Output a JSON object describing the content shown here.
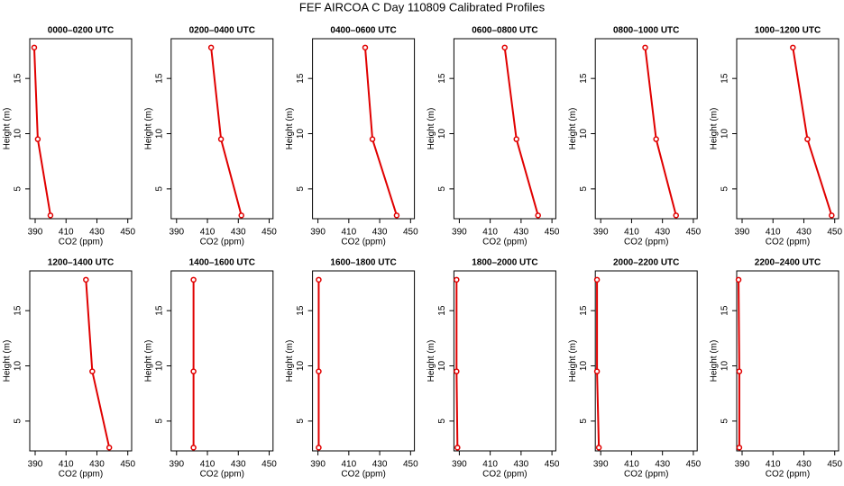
{
  "title": "FEF AIRCOA C  Day 110809  Calibrated Profiles",
  "chart_data": [
    {
      "type": "line",
      "title": "0000–0200 UTC",
      "xlabel": "CO2 (ppm)",
      "ylabel": "Height (m)",
      "color": "#e00000",
      "x": [
        389.4,
        391.7,
        399.9
      ],
      "y": [
        17.8,
        9.5,
        2.6
      ],
      "xlim": [
        386.5,
        452.5
      ],
      "xticks": [
        390,
        410,
        430,
        450
      ],
      "ylim": [
        2.3,
        18.6
      ],
      "yticks": [
        5,
        10,
        15
      ]
    },
    {
      "type": "line",
      "title": "0200–0400 UTC",
      "xlabel": "CO2 (ppm)",
      "ylabel": "Height (m)",
      "color": "#e00000",
      "x": [
        412.4,
        418.8,
        432
      ],
      "y": [
        17.8,
        9.5,
        2.6
      ],
      "xlim": [
        386.5,
        452.5
      ],
      "xticks": [
        390,
        410,
        430,
        450
      ],
      "ylim": [
        2.3,
        18.6
      ],
      "yticks": [
        5,
        10,
        15
      ]
    },
    {
      "type": "line",
      "title": "0400–0600 UTC",
      "xlabel": "CO2 (ppm)",
      "ylabel": "Height (m)",
      "color": "#e00000",
      "x": [
        420.6,
        425.3,
        441
      ],
      "y": [
        17.8,
        9.5,
        2.6
      ],
      "xlim": [
        386.5,
        452.5
      ],
      "xticks": [
        390,
        410,
        430,
        450
      ],
      "ylim": [
        2.3,
        18.6
      ],
      "yticks": [
        5,
        10,
        15
      ]
    },
    {
      "type": "line",
      "title": "0600–0800 UTC",
      "xlabel": "CO2 (ppm)",
      "ylabel": "Height (m)",
      "color": "#e00000",
      "x": [
        419.4,
        427,
        441
      ],
      "y": [
        17.8,
        9.5,
        2.6
      ],
      "xlim": [
        386.5,
        452.5
      ],
      "xticks": [
        390,
        410,
        430,
        450
      ],
      "ylim": [
        2.3,
        18.6
      ],
      "yticks": [
        5,
        10,
        15
      ]
    },
    {
      "type": "line",
      "title": "0800–1000 UTC",
      "xlabel": "CO2 (ppm)",
      "ylabel": "Height (m)",
      "color": "#e00000",
      "x": [
        418.8,
        425.9,
        438.8
      ],
      "y": [
        17.8,
        9.5,
        2.6
      ],
      "xlim": [
        386.5,
        452.5
      ],
      "xticks": [
        390,
        410,
        430,
        450
      ],
      "ylim": [
        2.3,
        18.6
      ],
      "yticks": [
        5,
        10,
        15
      ]
    },
    {
      "type": "line",
      "title": "1000–1200 UTC",
      "xlabel": "CO2 (ppm)",
      "ylabel": "Height (m)",
      "color": "#e00000",
      "x": [
        422.9,
        432.3,
        448
      ],
      "y": [
        17.8,
        9.5,
        2.6
      ],
      "xlim": [
        386.5,
        452.5
      ],
      "xticks": [
        390,
        410,
        430,
        450
      ],
      "ylim": [
        2.3,
        18.6
      ],
      "yticks": [
        5,
        10,
        15
      ]
    },
    {
      "type": "line",
      "title": "1200–1400 UTC",
      "xlabel": "CO2 (ppm)",
      "ylabel": "Height (m)",
      "color": "#e00000",
      "x": [
        422.9,
        427,
        438
      ],
      "y": [
        17.8,
        9.5,
        2.6
      ],
      "xlim": [
        386.5,
        452.5
      ],
      "xticks": [
        390,
        410,
        430,
        450
      ],
      "ylim": [
        2.3,
        18.6
      ],
      "yticks": [
        5,
        10,
        15
      ]
    },
    {
      "type": "line",
      "title": "1400–1600 UTC",
      "xlabel": "CO2 (ppm)",
      "ylabel": "Height (m)",
      "color": "#e00000",
      "x": [
        401,
        401,
        401
      ],
      "y": [
        17.8,
        9.5,
        2.6
      ],
      "xlim": [
        386.5,
        452.5
      ],
      "xticks": [
        390,
        410,
        430,
        450
      ],
      "ylim": [
        2.3,
        18.6
      ],
      "yticks": [
        5,
        10,
        15
      ]
    },
    {
      "type": "line",
      "title": "1600–1800 UTC",
      "xlabel": "CO2 (ppm)",
      "ylabel": "Height (m)",
      "color": "#e00000",
      "x": [
        390.5,
        390.5,
        390.5
      ],
      "y": [
        17.8,
        9.5,
        2.6
      ],
      "xlim": [
        386.5,
        452.5
      ],
      "xticks": [
        390,
        410,
        430,
        450
      ],
      "ylim": [
        2.3,
        18.6
      ],
      "yticks": [
        5,
        10,
        15
      ]
    },
    {
      "type": "line",
      "title": "1800–2000 UTC",
      "xlabel": "CO2 (ppm)",
      "ylabel": "Height (m)",
      "color": "#e00000",
      "x": [
        388.2,
        388.2,
        388.8
      ],
      "y": [
        17.8,
        9.5,
        2.6
      ],
      "xlim": [
        386.5,
        452.5
      ],
      "xticks": [
        390,
        410,
        430,
        450
      ],
      "ylim": [
        2.3,
        18.6
      ],
      "yticks": [
        5,
        10,
        15
      ]
    },
    {
      "type": "line",
      "title": "2000–2200 UTC",
      "xlabel": "CO2 (ppm)",
      "ylabel": "Height (m)",
      "color": "#e00000",
      "x": [
        387.6,
        387.6,
        388.8
      ],
      "y": [
        17.8,
        9.5,
        2.6
      ],
      "xlim": [
        386.5,
        452.5
      ],
      "xticks": [
        390,
        410,
        430,
        450
      ],
      "ylim": [
        2.3,
        18.6
      ],
      "yticks": [
        5,
        10,
        15
      ]
    },
    {
      "type": "line",
      "title": "2200–2400 UTC",
      "xlabel": "CO2 (ppm)",
      "ylabel": "Height (m)",
      "color": "#e00000",
      "x": [
        387.7,
        388.2,
        388.2
      ],
      "y": [
        17.8,
        9.5,
        2.6
      ],
      "xlim": [
        386.5,
        452.5
      ],
      "xticks": [
        390,
        410,
        430,
        450
      ],
      "ylim": [
        2.3,
        18.6
      ],
      "yticks": [
        5,
        10,
        15
      ]
    }
  ]
}
